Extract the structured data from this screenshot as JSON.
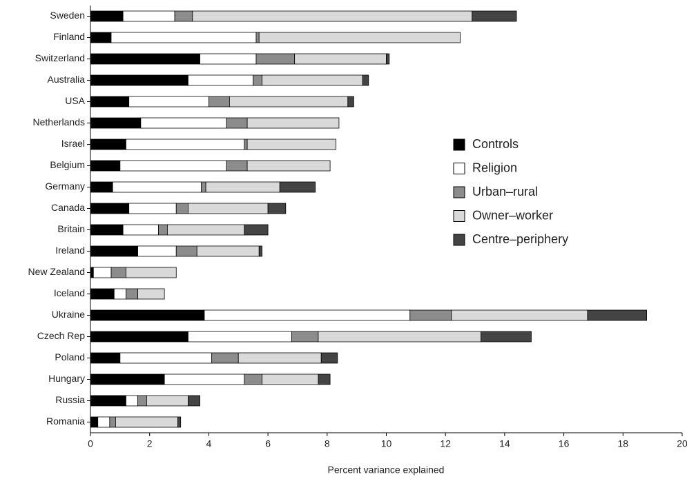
{
  "chart_data": {
    "type": "bar",
    "orientation": "horizontal",
    "stacked": true,
    "xlabel": "Percent variance explained",
    "categories": [
      "Sweden",
      "Finland",
      "Switzerland",
      "Australia",
      "USA",
      "Netherlands",
      "Israel",
      "Belgium",
      "Germany",
      "Canada",
      "Britain",
      "Ireland",
      "New Zealand",
      "Iceland",
      "Ukraine",
      "Czech Rep",
      "Poland",
      "Hungary",
      "Russia",
      "Romania"
    ],
    "series": [
      {
        "name": "Controls",
        "color": "#000000",
        "values": [
          1.1,
          0.7,
          3.7,
          3.3,
          1.3,
          1.7,
          1.2,
          1.0,
          0.75,
          1.3,
          1.1,
          1.6,
          0.1,
          0.8,
          3.85,
          3.3,
          1.0,
          2.5,
          1.2,
          0.25
        ]
      },
      {
        "name": "Religion",
        "color": "#ffffff",
        "values": [
          1.75,
          4.9,
          1.9,
          2.2,
          2.7,
          2.9,
          4.0,
          3.6,
          3.0,
          1.6,
          1.2,
          1.3,
          0.6,
          0.4,
          6.95,
          3.5,
          3.1,
          2.7,
          0.4,
          0.4
        ]
      },
      {
        "name": "Urban–rural",
        "color": "#8c8c8c",
        "values": [
          0.6,
          0.1,
          1.3,
          0.3,
          0.7,
          0.7,
          0.1,
          0.7,
          0.15,
          0.4,
          0.3,
          0.7,
          0.5,
          0.4,
          1.4,
          0.9,
          0.9,
          0.6,
          0.3,
          0.2
        ]
      },
      {
        "name": "Owner–worker",
        "color": "#d9d9d9",
        "values": [
          9.45,
          6.8,
          3.1,
          3.4,
          4.0,
          3.1,
          3.0,
          2.8,
          2.5,
          2.7,
          2.6,
          2.1,
          1.7,
          0.9,
          4.6,
          5.5,
          2.8,
          1.9,
          1.4,
          2.1
        ]
      },
      {
        "name": "Centre–periphery",
        "color": "#444444",
        "values": [
          1.5,
          0,
          0.1,
          0.2,
          0.2,
          0,
          0,
          0,
          1.2,
          0.6,
          0.8,
          0.1,
          0,
          0,
          2.0,
          1.7,
          0.55,
          0.4,
          0.4,
          0.1
        ]
      }
    ],
    "xlim": [
      0,
      20
    ],
    "xticks": [
      0,
      2,
      4,
      6,
      8,
      10,
      12,
      14,
      16,
      18,
      20
    ],
    "grid": false,
    "legend": "right"
  }
}
